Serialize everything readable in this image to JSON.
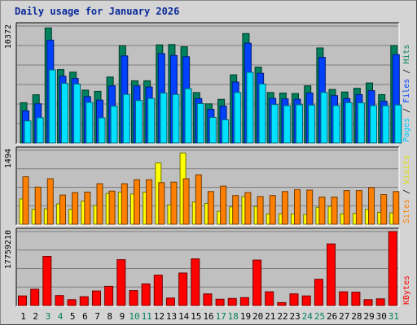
{
  "title": "Daily usage for January 2026",
  "colors": {
    "background": "#d4d4d4",
    "panel": "#c0c0c0",
    "hits": "#00805c",
    "files": "#0040ff",
    "pages": "#00e0ff",
    "visits": "#ffff00",
    "sites": "#ff8000",
    "kbytes": "#ff0000",
    "weekend_label": "#00805c",
    "weekday_label": "#000000"
  },
  "chart_data": [
    {
      "type": "bar",
      "panel": "top",
      "ymax_label": "10372",
      "ymax": 10372,
      "right_label": [
        {
          "text": "Pages",
          "color": "#00c8ff"
        },
        {
          "text": " / ",
          "color": "#000000"
        },
        {
          "text": "Files",
          "color": "#0040ff"
        },
        {
          "text": " / ",
          "color": "#000000"
        },
        {
          "text": "Hits",
          "color": "#00805c"
        }
      ],
      "series": [
        {
          "name": "Hits",
          "values": [
            3570,
            4280,
            10200,
            6510,
            6280,
            4690,
            4580,
            5850,
            8620,
            5520,
            5520,
            8700,
            8730,
            8530,
            4470,
            3470,
            3870,
            6040,
            9700,
            6730,
            4480,
            4430,
            4390,
            5070,
            8430,
            4750,
            4520,
            4850,
            5320,
            4290,
            8640
          ]
        },
        {
          "name": "Files",
          "values": [
            2850,
            3480,
            9120,
            5920,
            5720,
            4110,
            3800,
            5070,
            7720,
            5060,
            4960,
            7930,
            7760,
            7650,
            3940,
            2980,
            3270,
            5400,
            8850,
            6180,
            3960,
            3910,
            3880,
            4440,
            7590,
            4200,
            3940,
            4290,
            4640,
            3710,
            7840
          ]
        },
        {
          "name": "Pages",
          "values": [
            1960,
            2250,
            6480,
            5280,
            5220,
            3600,
            2230,
            3260,
            4310,
            3770,
            3950,
            4430,
            4300,
            4810,
            3490,
            2270,
            2060,
            4480,
            6270,
            5230,
            3410,
            3310,
            3390,
            3360,
            4490,
            3310,
            3580,
            3560,
            3310,
            3300,
            3370
          ]
        }
      ]
    },
    {
      "type": "bar",
      "panel": "middle",
      "ymax_label": "1494",
      "ymax": 1494,
      "right_label": [
        {
          "text": "Sites",
          "color": "#ff8000"
        },
        {
          "text": " / ",
          "color": "#000000"
        },
        {
          "text": "Visits",
          "color": "#e0e000"
        },
        {
          "text": "",
          "color": "#000000"
        }
      ],
      "series": [
        {
          "name": "Visits",
          "values": [
            510,
            300,
            310,
            410,
            300,
            470,
            380,
            620,
            650,
            610,
            650,
            1240,
            390,
            1440,
            450,
            420,
            260,
            350,
            560,
            360,
            210,
            210,
            210,
            200,
            340,
            360,
            210,
            220,
            300,
            240,
            230
          ]
        },
        {
          "name": "Sites",
          "values": [
            960,
            750,
            920,
            590,
            640,
            650,
            820,
            670,
            820,
            900,
            900,
            840,
            850,
            920,
            1000,
            660,
            770,
            580,
            640,
            560,
            580,
            660,
            700,
            690,
            550,
            550,
            680,
            680,
            740,
            600,
            660
          ]
        }
      ]
    },
    {
      "type": "bar",
      "panel": "bottom",
      "ymax_label": "17759210",
      "ymax": 17759210,
      "right_label": [
        {
          "text": "KBytes",
          "color": "#ff0000"
        }
      ],
      "series": [
        {
          "name": "KBytes",
          "values": [
            2300000,
            3900000,
            11800000,
            2400000,
            1400000,
            2100000,
            3500000,
            4600000,
            11000000,
            3600000,
            5200000,
            7300000,
            1800000,
            7800000,
            11200000,
            2800000,
            1500000,
            1700000,
            1900000,
            10900000,
            3300000,
            700000,
            2800000,
            2300000,
            6300000,
            14800000,
            3300000,
            3200000,
            1400000,
            1600000,
            17759210
          ]
        }
      ]
    }
  ],
  "days": [
    "1",
    "2",
    "3",
    "4",
    "5",
    "6",
    "7",
    "8",
    "9",
    "10",
    "11",
    "12",
    "13",
    "14",
    "15",
    "16",
    "17",
    "18",
    "19",
    "20",
    "21",
    "22",
    "23",
    "24",
    "25",
    "26",
    "27",
    "28",
    "29",
    "30",
    "31"
  ],
  "weekend_days": [
    3,
    4,
    10,
    11,
    17,
    18,
    24,
    25,
    31
  ]
}
